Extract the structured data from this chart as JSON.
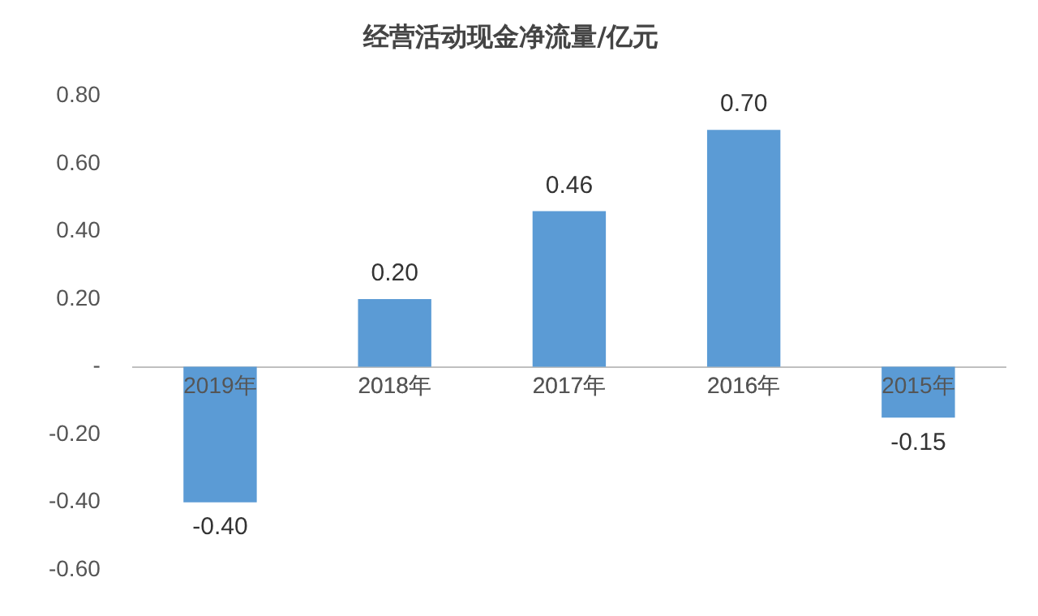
{
  "chart_data": {
    "type": "bar",
    "title": "经营活动现金净流量/亿元",
    "categories": [
      "2019年",
      "2018年",
      "2017年",
      "2016年",
      "2015年"
    ],
    "values": [
      -0.4,
      0.2,
      0.46,
      0.7,
      -0.15
    ],
    "value_labels": [
      "-0.40",
      "0.20",
      "0.46",
      "0.70",
      "-0.15"
    ],
    "color": "#5b9bd5",
    "ylim": [
      -0.6,
      0.8
    ],
    "yticks": [
      {
        "value": -0.6,
        "label": "-0.60"
      },
      {
        "value": -0.4,
        "label": "-0.40"
      },
      {
        "value": -0.2,
        "label": "-0.20"
      },
      {
        "value": 0,
        "label": "-"
      },
      {
        "value": 0.2,
        "label": "0.20"
      },
      {
        "value": 0.4,
        "label": "0.40"
      },
      {
        "value": 0.6,
        "label": "0.60"
      },
      {
        "value": 0.8,
        "label": "0.80"
      }
    ],
    "grid": false,
    "legend": false
  }
}
